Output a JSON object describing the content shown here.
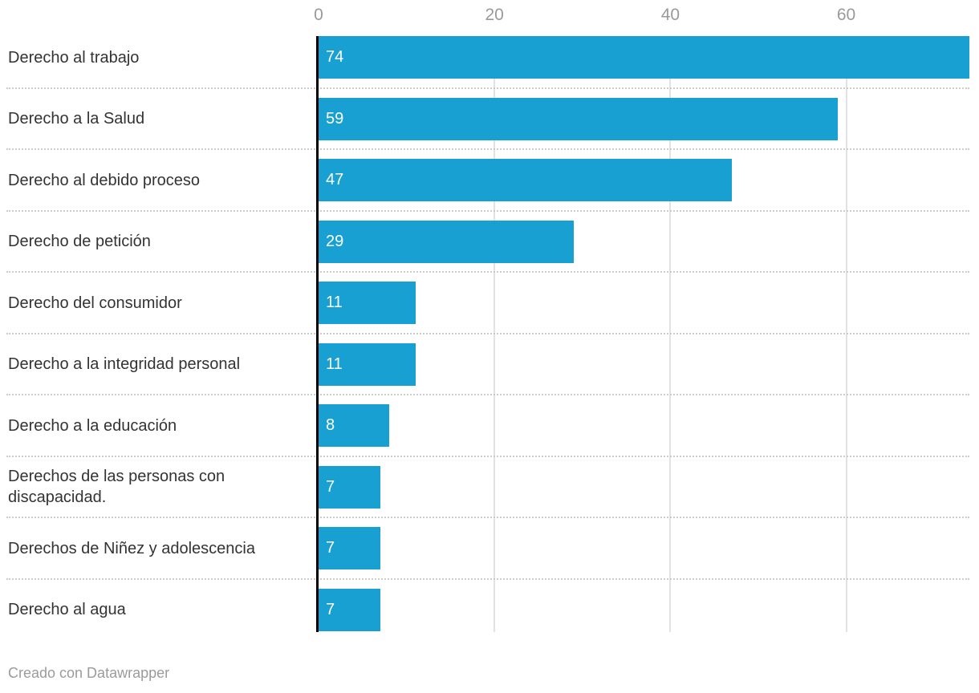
{
  "chart_data": {
    "type": "bar",
    "orientation": "horizontal",
    "categories": [
      "Derecho al trabajo",
      "Derecho a la Salud",
      "Derecho al debido proceso",
      "Derecho de petición",
      "Derecho del consumidor",
      "Derecho a la integridad personal",
      "Derecho a la educación",
      "Derechos de las personas con discapacidad.",
      "Derechos de Niñez y adolescencia",
      "Derecho al agua"
    ],
    "values": [
      74,
      59,
      47,
      29,
      11,
      11,
      8,
      7,
      7,
      7
    ],
    "xlim": [
      0,
      74
    ],
    "ticks": [
      0,
      20,
      40,
      60
    ],
    "tick_position": "top",
    "grid": "vertical",
    "value_labels_inside_bars": true
  },
  "colors": {
    "bar": "#18a0d3",
    "category_label": "#333333",
    "tick_label": "#9a9a9a",
    "gridline": "#e2e2e2",
    "zero_line": "#000000",
    "separator": "#cccccc",
    "footer_text": "#9b9b9b",
    "value_label": "#ffffff"
  },
  "footer": {
    "attribution": "Creado con Datawrapper"
  }
}
